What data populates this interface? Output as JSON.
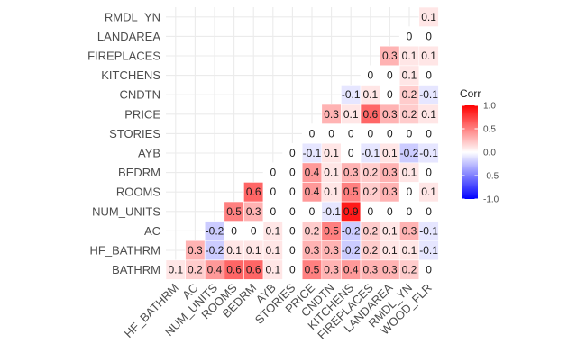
{
  "chart_data": {
    "type": "heatmap",
    "title": "",
    "xlabel": "",
    "ylabel": "",
    "x_categories": [
      "HF_BATHRM",
      "AC",
      "NUM_UNITS",
      "ROOMS",
      "BEDRM",
      "AYB",
      "STORIES",
      "PRICE",
      "CNDTN",
      "KITCHENS",
      "FIREPLACES",
      "LANDAREA",
      "RMDL_YN",
      "WOOD_FLR"
    ],
    "y_categories": [
      "BATHRM",
      "HF_BATHRM",
      "AC",
      "NUM_UNITS",
      "ROOMS",
      "BEDRM",
      "AYB",
      "STORIES",
      "PRICE",
      "CNDTN",
      "KITCHENS",
      "FIREPLACES",
      "LANDAREA",
      "RMDL_YN"
    ],
    "values": [
      [
        0.1,
        0.2,
        0.4,
        0.6,
        0.6,
        0.1,
        0,
        0.5,
        0.3,
        0.4,
        0.3,
        0.3,
        0.2,
        0
      ],
      [
        null,
        0.3,
        -0.2,
        0.1,
        0.1,
        0.1,
        0,
        0.3,
        0.3,
        -0.2,
        0.2,
        0.1,
        0.1,
        -0.1
      ],
      [
        null,
        null,
        -0.2,
        0,
        0,
        0.1,
        0,
        0.2,
        0.5,
        -0.2,
        0.2,
        0.1,
        0.3,
        -0.1
      ],
      [
        null,
        null,
        null,
        0.5,
        0.3,
        0,
        0,
        0,
        -0.1,
        0.9,
        0,
        0,
        0,
        0
      ],
      [
        null,
        null,
        null,
        null,
        0.6,
        0,
        0,
        0.4,
        0.1,
        0.5,
        0.2,
        0.3,
        0,
        0.1
      ],
      [
        null,
        null,
        null,
        null,
        null,
        0,
        0,
        0.4,
        0.1,
        0.3,
        0.2,
        0.3,
        0.1,
        0
      ],
      [
        null,
        null,
        null,
        null,
        null,
        null,
        0,
        -0.1,
        0.1,
        0,
        -0.1,
        0.1,
        -0.2,
        -0.1
      ],
      [
        null,
        null,
        null,
        null,
        null,
        null,
        null,
        0,
        0,
        0,
        0,
        0,
        0,
        0
      ],
      [
        null,
        null,
        null,
        null,
        null,
        null,
        null,
        null,
        0.3,
        0.1,
        0.6,
        0.3,
        0.2,
        0.1
      ],
      [
        null,
        null,
        null,
        null,
        null,
        null,
        null,
        null,
        null,
        -0.1,
        0.1,
        0,
        0.2,
        -0.1
      ],
      [
        null,
        null,
        null,
        null,
        null,
        null,
        null,
        null,
        null,
        null,
        0,
        0,
        0.1,
        0
      ],
      [
        null,
        null,
        null,
        null,
        null,
        null,
        null,
        null,
        null,
        null,
        null,
        0.3,
        0.1,
        0.1
      ],
      [
        null,
        null,
        null,
        null,
        null,
        null,
        null,
        null,
        null,
        null,
        null,
        null,
        0,
        0
      ],
      [
        null,
        null,
        null,
        null,
        null,
        null,
        null,
        null,
        null,
        null,
        null,
        null,
        null,
        0.1
      ]
    ],
    "value_labels": [
      [
        "0.1",
        "0.2",
        "0.4",
        "0.6",
        "0.6",
        "0.1",
        "0",
        "0.5",
        "0.3",
        "0.4",
        "0.3",
        "0.3",
        "0.2",
        "0"
      ],
      [
        null,
        "0.3",
        "-0.2",
        "0.1",
        "0.1",
        "0.1",
        "0",
        "0.3",
        "0.3",
        "-0.2",
        "0.2",
        "0.1",
        "0.1",
        "-0.1"
      ],
      [
        null,
        null,
        "-0.2",
        "0",
        "0",
        "0.1",
        "0",
        "0.2",
        "0.5",
        "-0.2",
        "0.2",
        "0.1",
        "0.3",
        "-0.1"
      ],
      [
        null,
        null,
        null,
        "0.5",
        "0.3",
        "0",
        "0",
        "0",
        "-0.1",
        "0.9",
        "0",
        "0",
        "0",
        "0"
      ],
      [
        null,
        null,
        null,
        null,
        "0.6",
        "0",
        "0",
        "0.4",
        "0.1",
        "0.5",
        "0.2",
        "0.3",
        "0",
        "0.1"
      ],
      [
        null,
        null,
        null,
        null,
        null,
        "0",
        "0",
        "0.4",
        "0.1",
        "0.3",
        "0.2",
        "0.3",
        "0.1",
        "0"
      ],
      [
        null,
        null,
        null,
        null,
        null,
        null,
        "0",
        "-0.1",
        "0.1",
        "0",
        "-0.1",
        "0.1",
        "-0.2",
        "-0.1"
      ],
      [
        null,
        null,
        null,
        null,
        null,
        null,
        null,
        "0",
        "0",
        "0",
        "0",
        "0",
        "0",
        "0"
      ],
      [
        null,
        null,
        null,
        null,
        null,
        null,
        null,
        null,
        "0.3",
        "0.1",
        "0.6",
        "0.3",
        "0.2",
        "0.1"
      ],
      [
        null,
        null,
        null,
        null,
        null,
        null,
        null,
        null,
        null,
        "-0.1",
        "0.1",
        "0",
        "0.2",
        "-0.1"
      ],
      [
        null,
        null,
        null,
        null,
        null,
        null,
        null,
        null,
        null,
        null,
        "0",
        "0",
        "0.1",
        "0"
      ],
      [
        null,
        null,
        null,
        null,
        null,
        null,
        null,
        null,
        null,
        null,
        null,
        "0.3",
        "0.1",
        "0.1"
      ],
      [
        null,
        null,
        null,
        null,
        null,
        null,
        null,
        null,
        null,
        null,
        null,
        null,
        "0",
        "0"
      ],
      [
        null,
        null,
        null,
        null,
        null,
        null,
        null,
        null,
        null,
        null,
        null,
        null,
        null,
        "0.1"
      ]
    ],
    "color_scale": {
      "low": "#0000ff",
      "mid": "#ffffff",
      "high": "#ff0000",
      "range": [
        -1,
        1
      ]
    },
    "legend": {
      "title": "Corr",
      "ticks": [
        1.0,
        0.5,
        0.0,
        -0.5,
        -1.0
      ],
      "tick_labels": [
        "1.0",
        "0.5",
        "0.0",
        "-0.5",
        "-1.0"
      ],
      "placement": "right"
    },
    "grid": true,
    "grid_color": "#ebebeb"
  }
}
